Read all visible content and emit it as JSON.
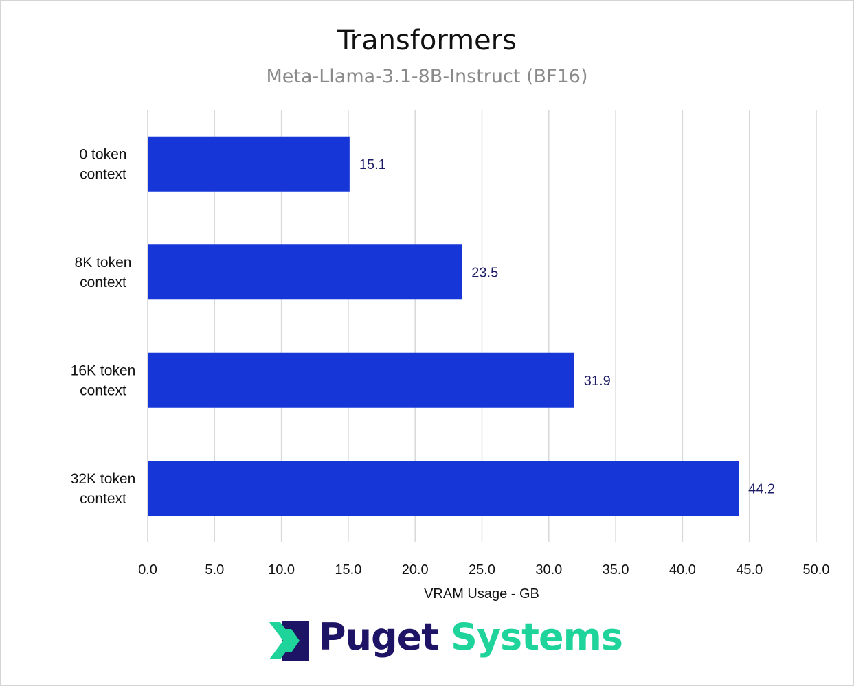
{
  "chart_data": {
    "type": "bar",
    "orientation": "horizontal",
    "title": "Transformers",
    "subtitle": "Meta-Llama-3.1-8B-Instruct (BF16)",
    "categories": [
      [
        "0 token",
        "context"
      ],
      [
        "8K token",
        "context"
      ],
      [
        "16K token",
        "context"
      ],
      [
        "32K token",
        "context"
      ]
    ],
    "values": [
      15.1,
      23.5,
      31.9,
      44.2
    ],
    "value_labels": [
      "15.1",
      "23.5",
      "31.9",
      "44.2"
    ],
    "xlabel": "VRAM Usage - GB",
    "ylabel": "",
    "xlim": [
      0,
      50
    ],
    "xticks": [
      "0.0",
      "5.0",
      "10.0",
      "15.0",
      "20.0",
      "25.0",
      "30.0",
      "35.0",
      "40.0",
      "45.0",
      "50.0"
    ],
    "grid": "vertical",
    "legend": "none"
  },
  "colors": {
    "bar": "#1736d8",
    "grid": "#d9d9d9",
    "value_label": "#1c1c66",
    "logo_puget": "#1e1466",
    "logo_systems": "#1fd49a"
  },
  "logo": {
    "word1": "Puget",
    "word2": "Systems",
    "icon": "puget-chevron-logo-icon"
  }
}
